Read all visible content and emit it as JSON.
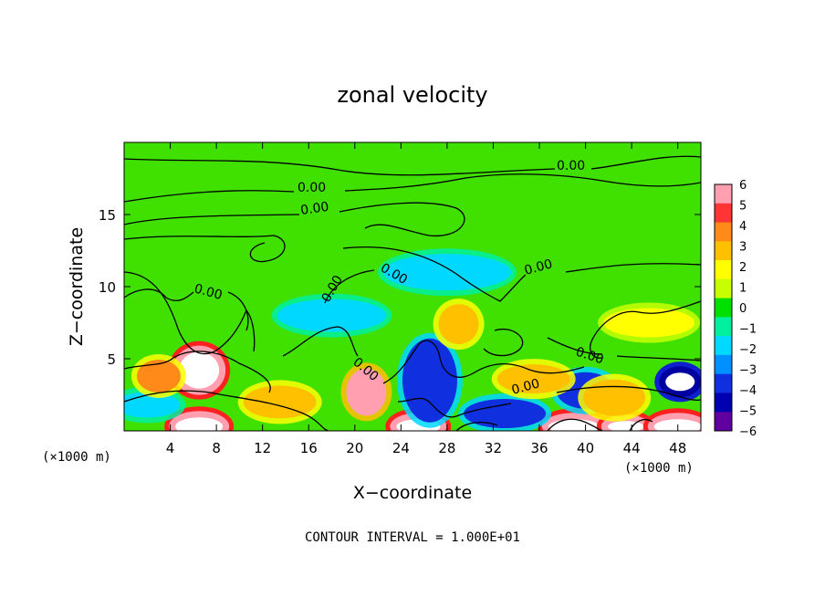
{
  "chart_data": {
    "type": "heatmap",
    "title": "zonal velocity",
    "xlabel": "X−coordinate",
    "ylabel": "Z−coordinate",
    "x_unit": "(×1000 m)",
    "x_unit_repeat": "(×1000 m)",
    "xlim": [
      0,
      50
    ],
    "ylim": [
      0,
      20
    ],
    "x_ticks": [
      4,
      8,
      12,
      16,
      20,
      24,
      28,
      32,
      36,
      40,
      44,
      48
    ],
    "y_ticks": [
      5,
      10,
      15
    ],
    "colorbar": {
      "range": [
        -6,
        6
      ],
      "ticks": [
        "6",
        "5",
        "4",
        "3",
        "2",
        "1",
        "0",
        "−1",
        "−2",
        "−3",
        "−4",
        "−5",
        "−6"
      ],
      "colors": [
        "#ff9fb0",
        "#ff3535",
        "#ff8a1a",
        "#ffc000",
        "#ffff00",
        "#c8ff00",
        "#00e000",
        "#00f0a0",
        "#00d8ff",
        "#0090ff",
        "#1030e0",
        "#0000b0",
        "#6000a0"
      ]
    },
    "contour_labels": [
      "0.00",
      "0.00",
      "0.00",
      "0.00",
      "0.00",
      "0.00",
      "0.00",
      "0.00",
      "0.00",
      "0.00"
    ],
    "features": [
      {
        "x": 6.5,
        "z": 4.2,
        "value": 6.5
      },
      {
        "x": 21.0,
        "z": 2.7,
        "value": 5.5
      },
      {
        "x": 48.2,
        "z": 3.4,
        "value": -6.5
      },
      {
        "x": 6.5,
        "z": 0.3,
        "value": 6.5
      },
      {
        "x": 25.5,
        "z": 0.3,
        "value": 6.5
      },
      {
        "x": 39.0,
        "z": 0.3,
        "value": 6.5
      },
      {
        "x": 43.5,
        "z": 0.3,
        "value": 6.5
      },
      {
        "x": 48.0,
        "z": 0.3,
        "value": 6.5
      },
      {
        "x": 26.5,
        "z": 3.5,
        "value": -3.8
      },
      {
        "x": 33.0,
        "z": 1.2,
        "value": -3.5
      },
      {
        "x": 40.0,
        "z": 2.8,
        "value": -3.6
      },
      {
        "x": 2.0,
        "z": 1.8,
        "value": -2.2
      },
      {
        "x": 3.0,
        "z": 3.8,
        "value": 3.5
      },
      {
        "x": 13.5,
        "z": 2.0,
        "value": 2.8
      },
      {
        "x": 29.0,
        "z": 7.4,
        "value": 3.0
      },
      {
        "x": 42.5,
        "z": 2.3,
        "value": 3.2
      },
      {
        "x": 35.5,
        "z": 3.6,
        "value": 2.6
      },
      {
        "x": 45.5,
        "z": 7.5,
        "value": 1.8
      },
      {
        "x": 18.0,
        "z": 8.0,
        "value": -1.8
      },
      {
        "x": 28.0,
        "z": 11.0,
        "value": -1.5
      }
    ],
    "footer": "CONTOUR INTERVAL = 1.000E+01"
  }
}
